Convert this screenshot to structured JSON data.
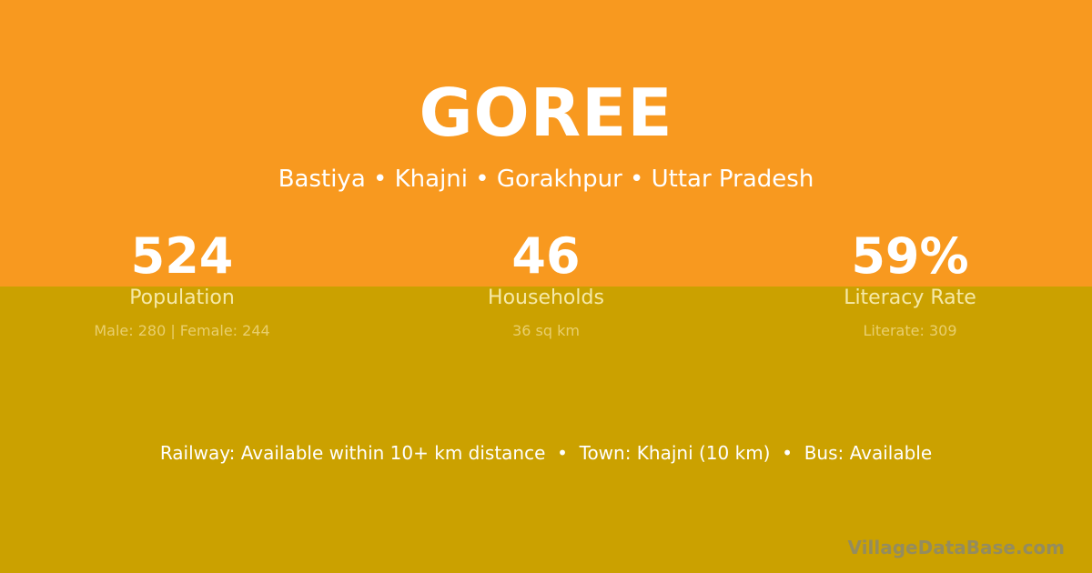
{
  "village": {
    "name": "GOREE",
    "breadcrumb": "Bastiya • Khajni • Gorakhpur • Uttar Pradesh"
  },
  "stats": [
    {
      "value": "524",
      "label": "Population",
      "detail": "Male: 280 | Female: 244"
    },
    {
      "value": "46",
      "label": "Households",
      "detail": "36 sq km"
    },
    {
      "value": "59%",
      "label": "Literacy Rate",
      "detail": "Literate: 309"
    }
  ],
  "amenities": "Railway: Available within 10+ km distance  •  Town: Khajni (10 km)  •  Bus: Available",
  "watermark": "VillageDataBase.com",
  "colors": {
    "top": "#F8991F",
    "bottom": "#CBA100"
  }
}
